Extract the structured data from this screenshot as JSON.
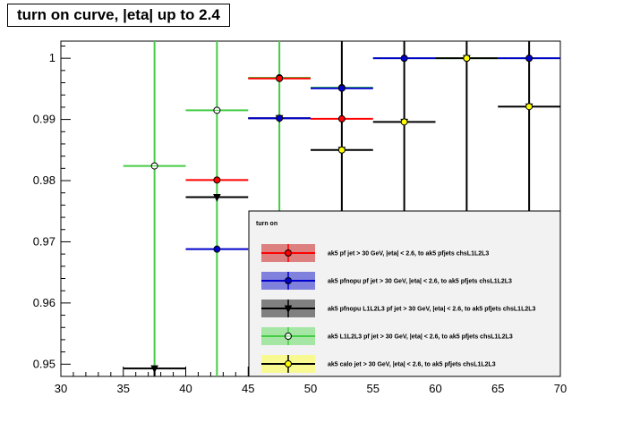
{
  "title": "turn on curve, |eta| up to 2.4",
  "chart_data": {
    "type": "scatter",
    "title": "turn on curve, |eta| up to 2.4",
    "xlabel": "",
    "ylabel": "",
    "xlim": [
      30,
      70
    ],
    "ylim": [
      0.948,
      1.0028
    ],
    "x_ticks": [
      30,
      35,
      40,
      45,
      50,
      55,
      60,
      65,
      70
    ],
    "y_ticks": [
      0.95,
      0.96,
      0.97,
      0.98,
      0.99,
      1
    ],
    "y_tick_labels": [
      "0.95",
      "0.96",
      "0.97",
      "0.98",
      "0.99",
      "1"
    ],
    "grid": false,
    "legend": {
      "title": "turn on",
      "placement": "bottom-right",
      "entries": [
        "ak5 pf jet > 30 GeV, |eta| < 2.6, to ak5 pfjets chsL1L2L3",
        "ak5 pfnopu pf jet > 30 GeV, |eta| < 2.6, to ak5 pfjets chsL1L2L3",
        "ak5 pfnopu L1L2L3 pf jet > 30 GeV, |eta| < 2.6, to ak5 pfjets chsL1L2L3",
        "ak5  L1L2L3 pf jet > 30 GeV, |eta| < 2.6, to ak5 pfjets chsL1L2L3",
        "ak5 calo jet > 30 GeV, |eta| < 2.6, to ak5 pfjets chsL1L2L3"
      ]
    },
    "series": [
      {
        "color": "#ff0000",
        "marker": "circle",
        "points": [
          {
            "x": 42.5,
            "y": 0.9801,
            "xerr": 2.5,
            "ylo": 0.9801,
            "yhi": 0.9801
          },
          {
            "x": 47.5,
            "y": 0.9967,
            "xerr": 2.5,
            "ylo": 0.9967,
            "yhi": 0.9967
          },
          {
            "x": 52.5,
            "y": 0.9901,
            "xerr": 2.5,
            "ylo": 0.9901,
            "yhi": 0.9901
          }
        ]
      },
      {
        "color": "#0000cc",
        "marker": "circle",
        "points": [
          {
            "x": 42.5,
            "y": 0.9688,
            "xerr": 2.5,
            "ylo": 0.9688,
            "yhi": 0.9688
          },
          {
            "x": 47.5,
            "y": 0.9902,
            "xerr": 2.5,
            "ylo": 0.9902,
            "yhi": 0.9902
          },
          {
            "x": 52.5,
            "y": 0.9951,
            "xerr": 2.5,
            "ylo": 0.9951,
            "yhi": 0.9951
          },
          {
            "x": 57.5,
            "y": 1.0,
            "xerr": 2.5,
            "ylo": 1.0,
            "yhi": 1.0
          },
          {
            "x": 67.5,
            "y": 1.0,
            "xerr": 2.5,
            "ylo": 1.0,
            "yhi": 1.0
          }
        ]
      },
      {
        "color": "#000000",
        "marker": "triangle-down",
        "points": [
          {
            "x": 37.5,
            "y": 0.9493,
            "xerr": 2.5,
            "ylo": 0.948,
            "yhi": 0.9493
          },
          {
            "x": 42.5,
            "y": 0.9773,
            "xerr": 2.5,
            "ylo": 0.9773,
            "yhi": 0.9773
          },
          {
            "x": 47.5,
            "y": 0.9902,
            "xerr": 2.5,
            "ylo": 0.9902,
            "yhi": 0.9902
          },
          {
            "x": 52.5,
            "y": 0.985,
            "xerr": 2.5,
            "ylo": 0.948,
            "yhi": 1.0028
          },
          {
            "x": 57.5,
            "y": 0.9896,
            "xerr": 2.5,
            "ylo": 0.948,
            "yhi": 1.0028
          },
          {
            "x": 62.5,
            "y": 1.0,
            "xerr": 2.5,
            "ylo": 0.948,
            "yhi": 1.0028
          },
          {
            "x": 67.5,
            "y": 0.9921,
            "xerr": 2.5,
            "ylo": 0.948,
            "yhi": 1.0028
          }
        ]
      },
      {
        "color": "#44cc44",
        "marker": "open-circle",
        "points": [
          {
            "x": 37.5,
            "y": 0.9824,
            "xerr": 2.5,
            "ylo": 0.948,
            "yhi": 1.0028
          },
          {
            "x": 42.5,
            "y": 0.9915,
            "xerr": 2.5,
            "ylo": 0.948,
            "yhi": 1.0028
          },
          {
            "x": 47.5,
            "y": 0.9968,
            "xerr": 2.5,
            "ylo": 0.948,
            "yhi": 1.0028
          },
          {
            "x": 52.5,
            "y": 0.9952,
            "xerr": 2.5,
            "ylo": 0.9952,
            "yhi": 0.9952
          },
          {
            "x": 57.5,
            "y": 1.0,
            "xerr": 2.5,
            "ylo": 1.0,
            "yhi": 1.0
          },
          {
            "x": 62.5,
            "y": 1.0,
            "xerr": 2.5,
            "ylo": 1.0,
            "yhi": 1.0
          },
          {
            "x": 67.5,
            "y": 1.0,
            "xerr": 2.5,
            "ylo": 1.0,
            "yhi": 1.0
          }
        ]
      },
      {
        "color": "#ffff00",
        "marker": "circle",
        "points": [
          {
            "x": 52.5,
            "y": 0.985,
            "xerr": 0,
            "ylo": 0.985,
            "yhi": 0.985
          },
          {
            "x": 57.5,
            "y": 0.9896,
            "xerr": 0,
            "ylo": 0.9896,
            "yhi": 0.9896
          },
          {
            "x": 62.5,
            "y": 1.0,
            "xerr": 0,
            "ylo": 1.0,
            "yhi": 1.0
          },
          {
            "x": 67.5,
            "y": 0.9921,
            "xerr": 0,
            "ylo": 0.9921,
            "yhi": 0.9921
          }
        ]
      }
    ]
  }
}
